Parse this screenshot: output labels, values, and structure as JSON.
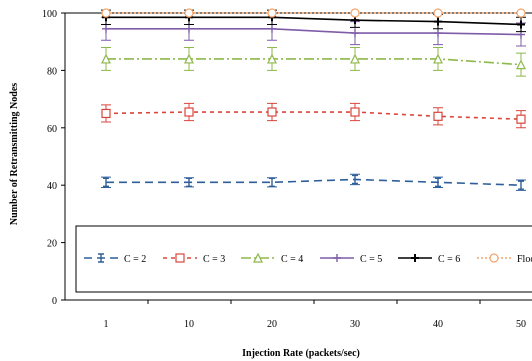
{
  "chart_data": {
    "type": "line",
    "xlabel": "Injection Rate (packets/sec)",
    "ylabel": "Number of Retransmitting Nodes",
    "categories": [
      "1",
      "10",
      "20",
      "30",
      "40",
      "50"
    ],
    "ylim": [
      0,
      100
    ],
    "yticks": [
      0,
      20,
      40,
      60,
      80,
      100
    ],
    "grid": false,
    "legend_position": "bottom",
    "series": [
      {
        "name": "C = 2",
        "color": "#2e5f9a",
        "dash": "8,5",
        "marker": "tbar",
        "values": [
          41,
          41,
          41,
          42,
          41,
          40
        ],
        "err": [
          1.8,
          1.6,
          1.6,
          1.8,
          1.8,
          1.8
        ]
      },
      {
        "name": "C = 3",
        "color": "#d9453d",
        "dash": "4,4",
        "marker": "square",
        "values": [
          65,
          65.5,
          65.5,
          65.5,
          64,
          63
        ],
        "err": [
          3,
          3,
          3,
          3,
          3,
          3
        ]
      },
      {
        "name": "C = 4",
        "color": "#8db84a",
        "dash": "10,3,2,3",
        "marker": "triangle",
        "values": [
          84,
          84,
          84,
          84,
          84,
          82
        ],
        "err": [
          4,
          4,
          4,
          4,
          4,
          4
        ]
      },
      {
        "name": "C = 5",
        "color": "#7e5ca8",
        "dash": "",
        "marker": "cross",
        "values": [
          94.5,
          94.5,
          94.5,
          93,
          93,
          92.5
        ],
        "err": [
          4,
          4,
          4,
          4,
          4,
          4
        ]
      },
      {
        "name": "C = 6",
        "color": "#000000",
        "dash": "",
        "marker": "plus",
        "values": [
          98.5,
          98.5,
          98.5,
          97.5,
          97,
          96
        ],
        "err": [
          2.5,
          2.5,
          2.5,
          2.5,
          2.5,
          2.5
        ]
      },
      {
        "name": "Flooding",
        "color": "#f4a46b",
        "dash": "2,2",
        "marker": "circle",
        "values": [
          100,
          100,
          100,
          100,
          100,
          100
        ],
        "err": [
          0,
          0,
          0,
          0,
          0,
          0
        ]
      }
    ]
  }
}
